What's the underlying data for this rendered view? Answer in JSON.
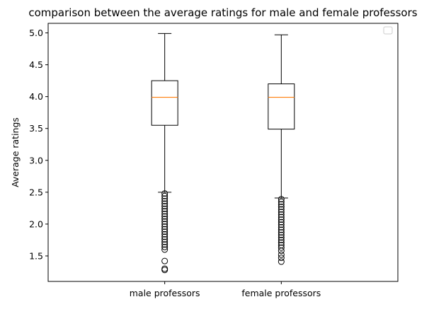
{
  "chart_data": {
    "type": "boxplot",
    "title": "comparison between the average ratings for male and female professors",
    "xlabel": "",
    "ylabel": "Average ratings",
    "ylim": [
      1.1,
      5.15
    ],
    "yticks": [
      1.5,
      2.0,
      2.5,
      3.0,
      3.5,
      4.0,
      4.5,
      5.0
    ],
    "ytick_labels": [
      "1.5",
      "2.0",
      "2.5",
      "3.0",
      "3.5",
      "4.0",
      "4.5",
      "5.0"
    ],
    "categories": [
      "male professors",
      "female professors"
    ],
    "grid": false,
    "legend": "top-right, empty",
    "colors": {
      "box": "#000000",
      "median": "#ff7f0e",
      "whisker": "#000000",
      "flier": "#000000"
    },
    "boxes": [
      {
        "category": "male professors",
        "whisker_low": 2.5,
        "q1": 3.55,
        "median": 3.99,
        "q3": 4.25,
        "whisker_high": 4.99,
        "outliers": [
          2.48,
          2.44,
          2.4,
          2.36,
          2.32,
          2.28,
          2.24,
          2.2,
          2.16,
          2.12,
          2.08,
          2.04,
          2.0,
          1.96,
          1.92,
          1.88,
          1.84,
          1.8,
          1.76,
          1.72,
          1.68,
          1.64,
          1.6,
          1.42,
          1.3,
          1.28
        ]
      },
      {
        "category": "female professors",
        "whisker_low": 2.41,
        "q1": 3.49,
        "median": 3.99,
        "q3": 4.2,
        "whisker_high": 4.97,
        "outliers": [
          2.39,
          2.35,
          2.31,
          2.27,
          2.23,
          2.19,
          2.15,
          2.11,
          2.07,
          2.03,
          1.99,
          1.95,
          1.91,
          1.87,
          1.83,
          1.79,
          1.75,
          1.71,
          1.67,
          1.63,
          1.58,
          1.52,
          1.47,
          1.41
        ]
      }
    ]
  }
}
